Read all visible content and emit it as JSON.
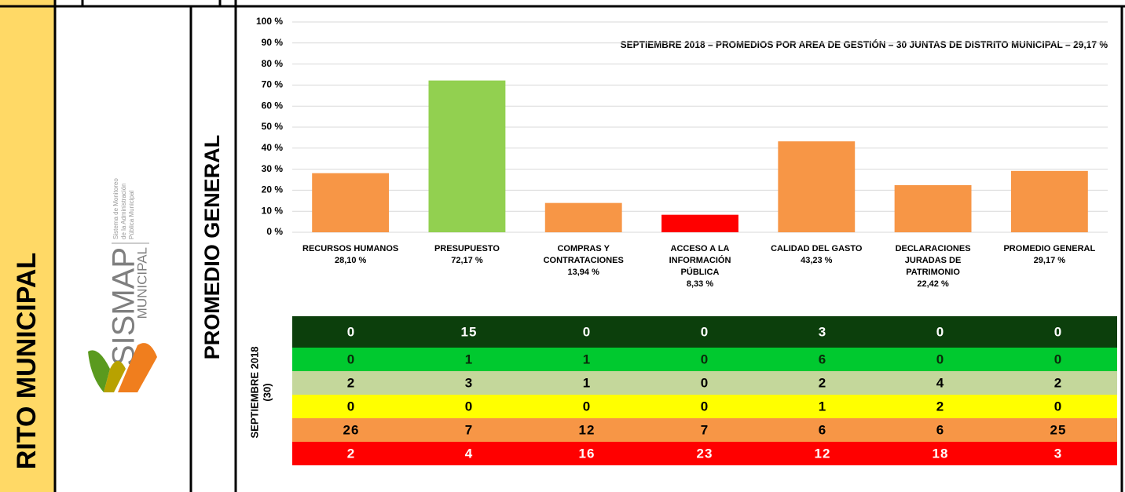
{
  "side_label": "RITO MUNICIPAL",
  "logo": {
    "name": "SISMAP",
    "sub": "MUNICIPAL",
    "tagline": [
      "Sistema de Monitoreo",
      "de la Administración",
      "Pública Municipal"
    ]
  },
  "section_label": "PROMEDIO GENERAL",
  "chart_data": {
    "type": "bar",
    "title": "SEPTIEMBRE  2018 – PROMEDIOS POR AREA DE GESTIÓN – 30 JUNTAS DE DISTRITO MUNICIPAL – 29,17 %",
    "categories": [
      "RECURSOS HUMANOS",
      "PRESUPUESTO",
      "COMPRAS Y CONTRATACIONES",
      "ACCESO A LA INFORMACIÓN PÚBLICA",
      "CALIDAD DEL GASTO",
      "DECLARACIONES JURADAS DE PATRIMONIO",
      "PROMEDIO GENERAL"
    ],
    "values": [
      28.1,
      72.17,
      13.94,
      8.33,
      43.23,
      22.42,
      29.17
    ],
    "value_labels": [
      "28,10 %",
      "72,17 %",
      "13,94 %",
      "8,33 %",
      "43,23 %",
      "22,42 %",
      "29,17 %"
    ],
    "colors": [
      "#f79646",
      "#92d050",
      "#f79646",
      "#ff0000",
      "#f79646",
      "#f79646",
      "#f79646"
    ],
    "ylim": [
      0,
      100
    ],
    "yticks": [
      {
        "value": 0,
        "label": "0 %"
      },
      {
        "value": 10,
        "label": "10 %"
      },
      {
        "value": 20,
        "label": "20 %"
      },
      {
        "value": 30,
        "label": "30 %"
      },
      {
        "value": 40,
        "label": "40 %"
      },
      {
        "value": 50,
        "label": "50 %"
      },
      {
        "value": 60,
        "label": "60 %"
      },
      {
        "value": 70,
        "label": "70 %"
      },
      {
        "value": 80,
        "label": "80 %"
      },
      {
        "value": 90,
        "label": "90 %"
      },
      {
        "value": 100,
        "label": "100 %"
      }
    ],
    "grid": true
  },
  "table": {
    "label": [
      "SEPTIEMBRE 2018",
      "(30)"
    ],
    "row_colors": [
      "#0c3f0c",
      "#00c92f",
      "#c4d79b",
      "#ffff00",
      "#f79646",
      "#ff0000"
    ],
    "text_colors": [
      "#ffffff",
      "#0a2a0a",
      "#000000",
      "#000000",
      "#000000",
      "#ffffff"
    ],
    "rows": [
      [
        0,
        15,
        0,
        0,
        3,
        0,
        0
      ],
      [
        0,
        1,
        1,
        0,
        6,
        0,
        0
      ],
      [
        2,
        3,
        1,
        0,
        2,
        4,
        2
      ],
      [
        0,
        0,
        0,
        0,
        1,
        2,
        0
      ],
      [
        26,
        7,
        12,
        7,
        6,
        6,
        25
      ],
      [
        2,
        4,
        16,
        23,
        12,
        18,
        3
      ]
    ]
  }
}
